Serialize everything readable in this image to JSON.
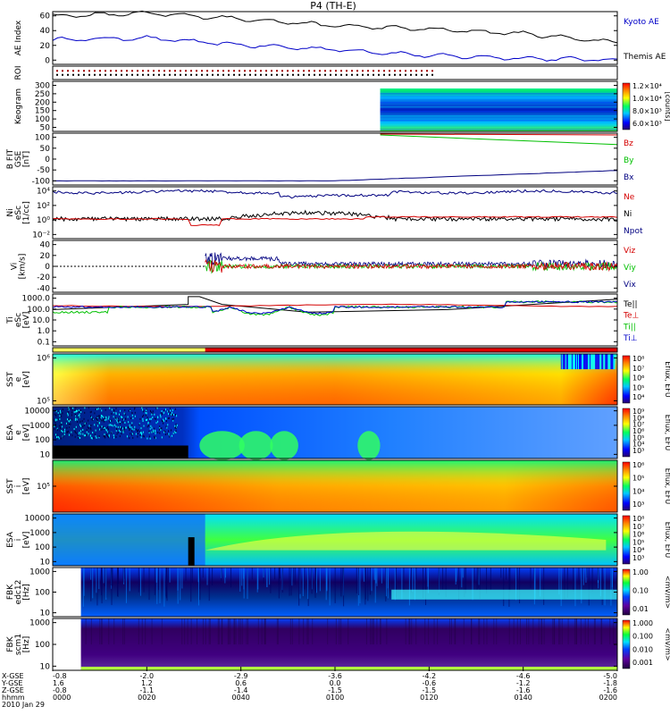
{
  "title": "P4 (TH-E)",
  "colors": {
    "black": "#000000",
    "red": "#d40000",
    "green": "#00c000",
    "blue": "#0000c8",
    "navy": "#000080"
  },
  "panels": [
    {
      "key": "ae",
      "ylabel": [
        "AE Index"
      ],
      "ticks": [
        "60",
        "40",
        "20",
        "0"
      ],
      "legend": [
        {
          "text": "Kyoto AE",
          "color": "#0000c8"
        },
        {
          "text": "Themis AE",
          "color": "#000000"
        }
      ]
    },
    {
      "key": "roi",
      "ylabel": [
        "ROI"
      ],
      "ticks": [],
      "legend": []
    },
    {
      "key": "keogram",
      "ylabel": [
        "Keogram"
      ],
      "ticks": [
        "300",
        "250",
        "200",
        "150",
        "100",
        "50"
      ],
      "legend": [],
      "colorbar": {
        "labels": [
          "1.2×10⁴",
          "1.0×10⁴",
          "8.0×10³",
          "6.0×10³"
        ],
        "unit": "[counts]"
      }
    },
    {
      "key": "bfgm",
      "ylabel": [
        "B FIT",
        "GSE",
        "[nT]"
      ],
      "ticks": [
        "100",
        "50",
        "0",
        "-50",
        "-100"
      ],
      "legend": [
        {
          "text": "Bz",
          "color": "#d40000"
        },
        {
          "text": "By",
          "color": "#00c000"
        },
        {
          "text": "Bx",
          "color": "#000080"
        }
      ]
    },
    {
      "key": "ni",
      "ylabel": [
        "Ni",
        "eSc",
        "[1/cc]"
      ],
      "ticks": [
        "10⁴",
        "10²",
        "10⁰",
        "10⁻²"
      ],
      "legend": [
        {
          "text": "Ne",
          "color": "#d40000"
        },
        {
          "text": "Ni",
          "color": "#000000"
        },
        {
          "text": "Npot",
          "color": "#000080"
        }
      ]
    },
    {
      "key": "vi",
      "ylabel": [
        "Vi",
        "[km/s]"
      ],
      "ticks": [
        "40",
        "20",
        "0",
        "-20",
        "-40"
      ],
      "legend": [
        {
          "text": "Viz",
          "color": "#d40000"
        },
        {
          "text": "Viy",
          "color": "#00c000"
        },
        {
          "text": "Vix",
          "color": "#000080"
        }
      ]
    },
    {
      "key": "ti",
      "ylabel": [
        "Ti",
        "eSc",
        "[eV]"
      ],
      "ticks": [
        "1000.0",
        "100.0",
        "10.0",
        "1.0",
        "0.1"
      ],
      "legend": [
        {
          "text": "Te||",
          "color": "#000000"
        },
        {
          "text": "Te⊥",
          "color": "#d40000"
        },
        {
          "text": "Ti||",
          "color": "#00c000"
        },
        {
          "text": "Ti⊥",
          "color": "#0000c8"
        }
      ]
    },
    {
      "key": "bar",
      "ylabel": [],
      "ticks": [],
      "legend": []
    },
    {
      "key": "sst_e",
      "ylabel": [
        "SST",
        "e",
        "[eV]"
      ],
      "ticks": [
        "10⁶",
        "10⁵"
      ],
      "legend": [],
      "colorbar": {
        "labels": [
          "10⁸",
          "10⁷",
          "10⁶",
          "10⁵",
          "10⁴"
        ],
        "unit": "Eflux, EFU"
      }
    },
    {
      "key": "esa_e",
      "ylabel": [
        "ESA",
        "e",
        "[eV]"
      ],
      "ticks": [
        "10000",
        "1000",
        "100",
        "10"
      ],
      "legend": [],
      "colorbar": {
        "labels": [
          "10⁹",
          "10⁸",
          "10⁷",
          "10⁶",
          "10⁵",
          "10⁴",
          "10³"
        ],
        "unit": "Eflux, EFU"
      }
    },
    {
      "key": "sst_i",
      "ylabel": [
        "SST",
        "i",
        "[eV]"
      ],
      "ticks": [
        "10⁵"
      ],
      "legend": [],
      "colorbar": {
        "labels": [
          "10⁶",
          "10⁵",
          "10⁴",
          "10³"
        ],
        "unit": "Eflux, EFU"
      }
    },
    {
      "key": "esa_i",
      "ylabel": [
        "ESA",
        "i",
        "[eV]"
      ],
      "ticks": [
        "10000",
        "1000",
        "100",
        "10"
      ],
      "legend": [],
      "colorbar": {
        "labels": [
          "10⁸",
          "10⁷",
          "10⁶",
          "10⁵",
          "10⁴",
          "10³"
        ],
        "unit": "Eflux, EFU"
      }
    },
    {
      "key": "fbk1",
      "ylabel": [
        "FBK",
        "edc12",
        "[Hz]"
      ],
      "ticks": [
        "1000",
        "100",
        "10"
      ],
      "legend": [],
      "colorbar": {
        "labels": [
          "1.00",
          "0.10",
          "0.01"
        ],
        "unit": "<mV/m>"
      }
    },
    {
      "key": "fbk2",
      "ylabel": [
        "FBK",
        "scm1",
        "[Hz]"
      ],
      "ticks": [
        "1000",
        "100",
        "10"
      ],
      "legend": [],
      "colorbar": {
        "labels": [
          "1.000",
          "0.100",
          "0.010",
          "0.001"
        ],
        "unit": "<mV/m>"
      }
    }
  ],
  "xaxis": {
    "rows": [
      {
        "label": "X-GSE",
        "values": [
          "-0.8",
          "-2.0",
          "-2.9",
          "-3.6",
          "-4.2",
          "-4.6",
          "-5.0"
        ]
      },
      {
        "label": "Y-GSE",
        "values": [
          "1.6",
          "1.2",
          "0.6",
          "0.0",
          "-0.6",
          "-1.2",
          "-1.8"
        ]
      },
      {
        "label": "Z-GSE",
        "values": [
          "-0.8",
          "-1.1",
          "-1.4",
          "-1.5",
          "-1.5",
          "-1.6",
          "-1.6"
        ]
      },
      {
        "label": "hhmm",
        "values": [
          "0000",
          "0020",
          "0040",
          "0100",
          "0120",
          "0140",
          "0200"
        ]
      }
    ],
    "date": "2010 Jan 29"
  },
  "chart_data": {
    "type": "line",
    "title": "P4 (TH-E)",
    "x": [
      "0000",
      "0020",
      "0040",
      "0100",
      "0120",
      "0140",
      "0200"
    ],
    "series": [
      {
        "name": "Kyoto AE",
        "values": [
          28,
          30,
          22,
          17,
          10,
          7,
          5
        ]
      },
      {
        "name": "Themis AE",
        "values": [
          55,
          58,
          52,
          44,
          40,
          35,
          25
        ]
      }
    ],
    "ylabel": "AE Index",
    "ylim": [
      0,
      60
    ]
  }
}
